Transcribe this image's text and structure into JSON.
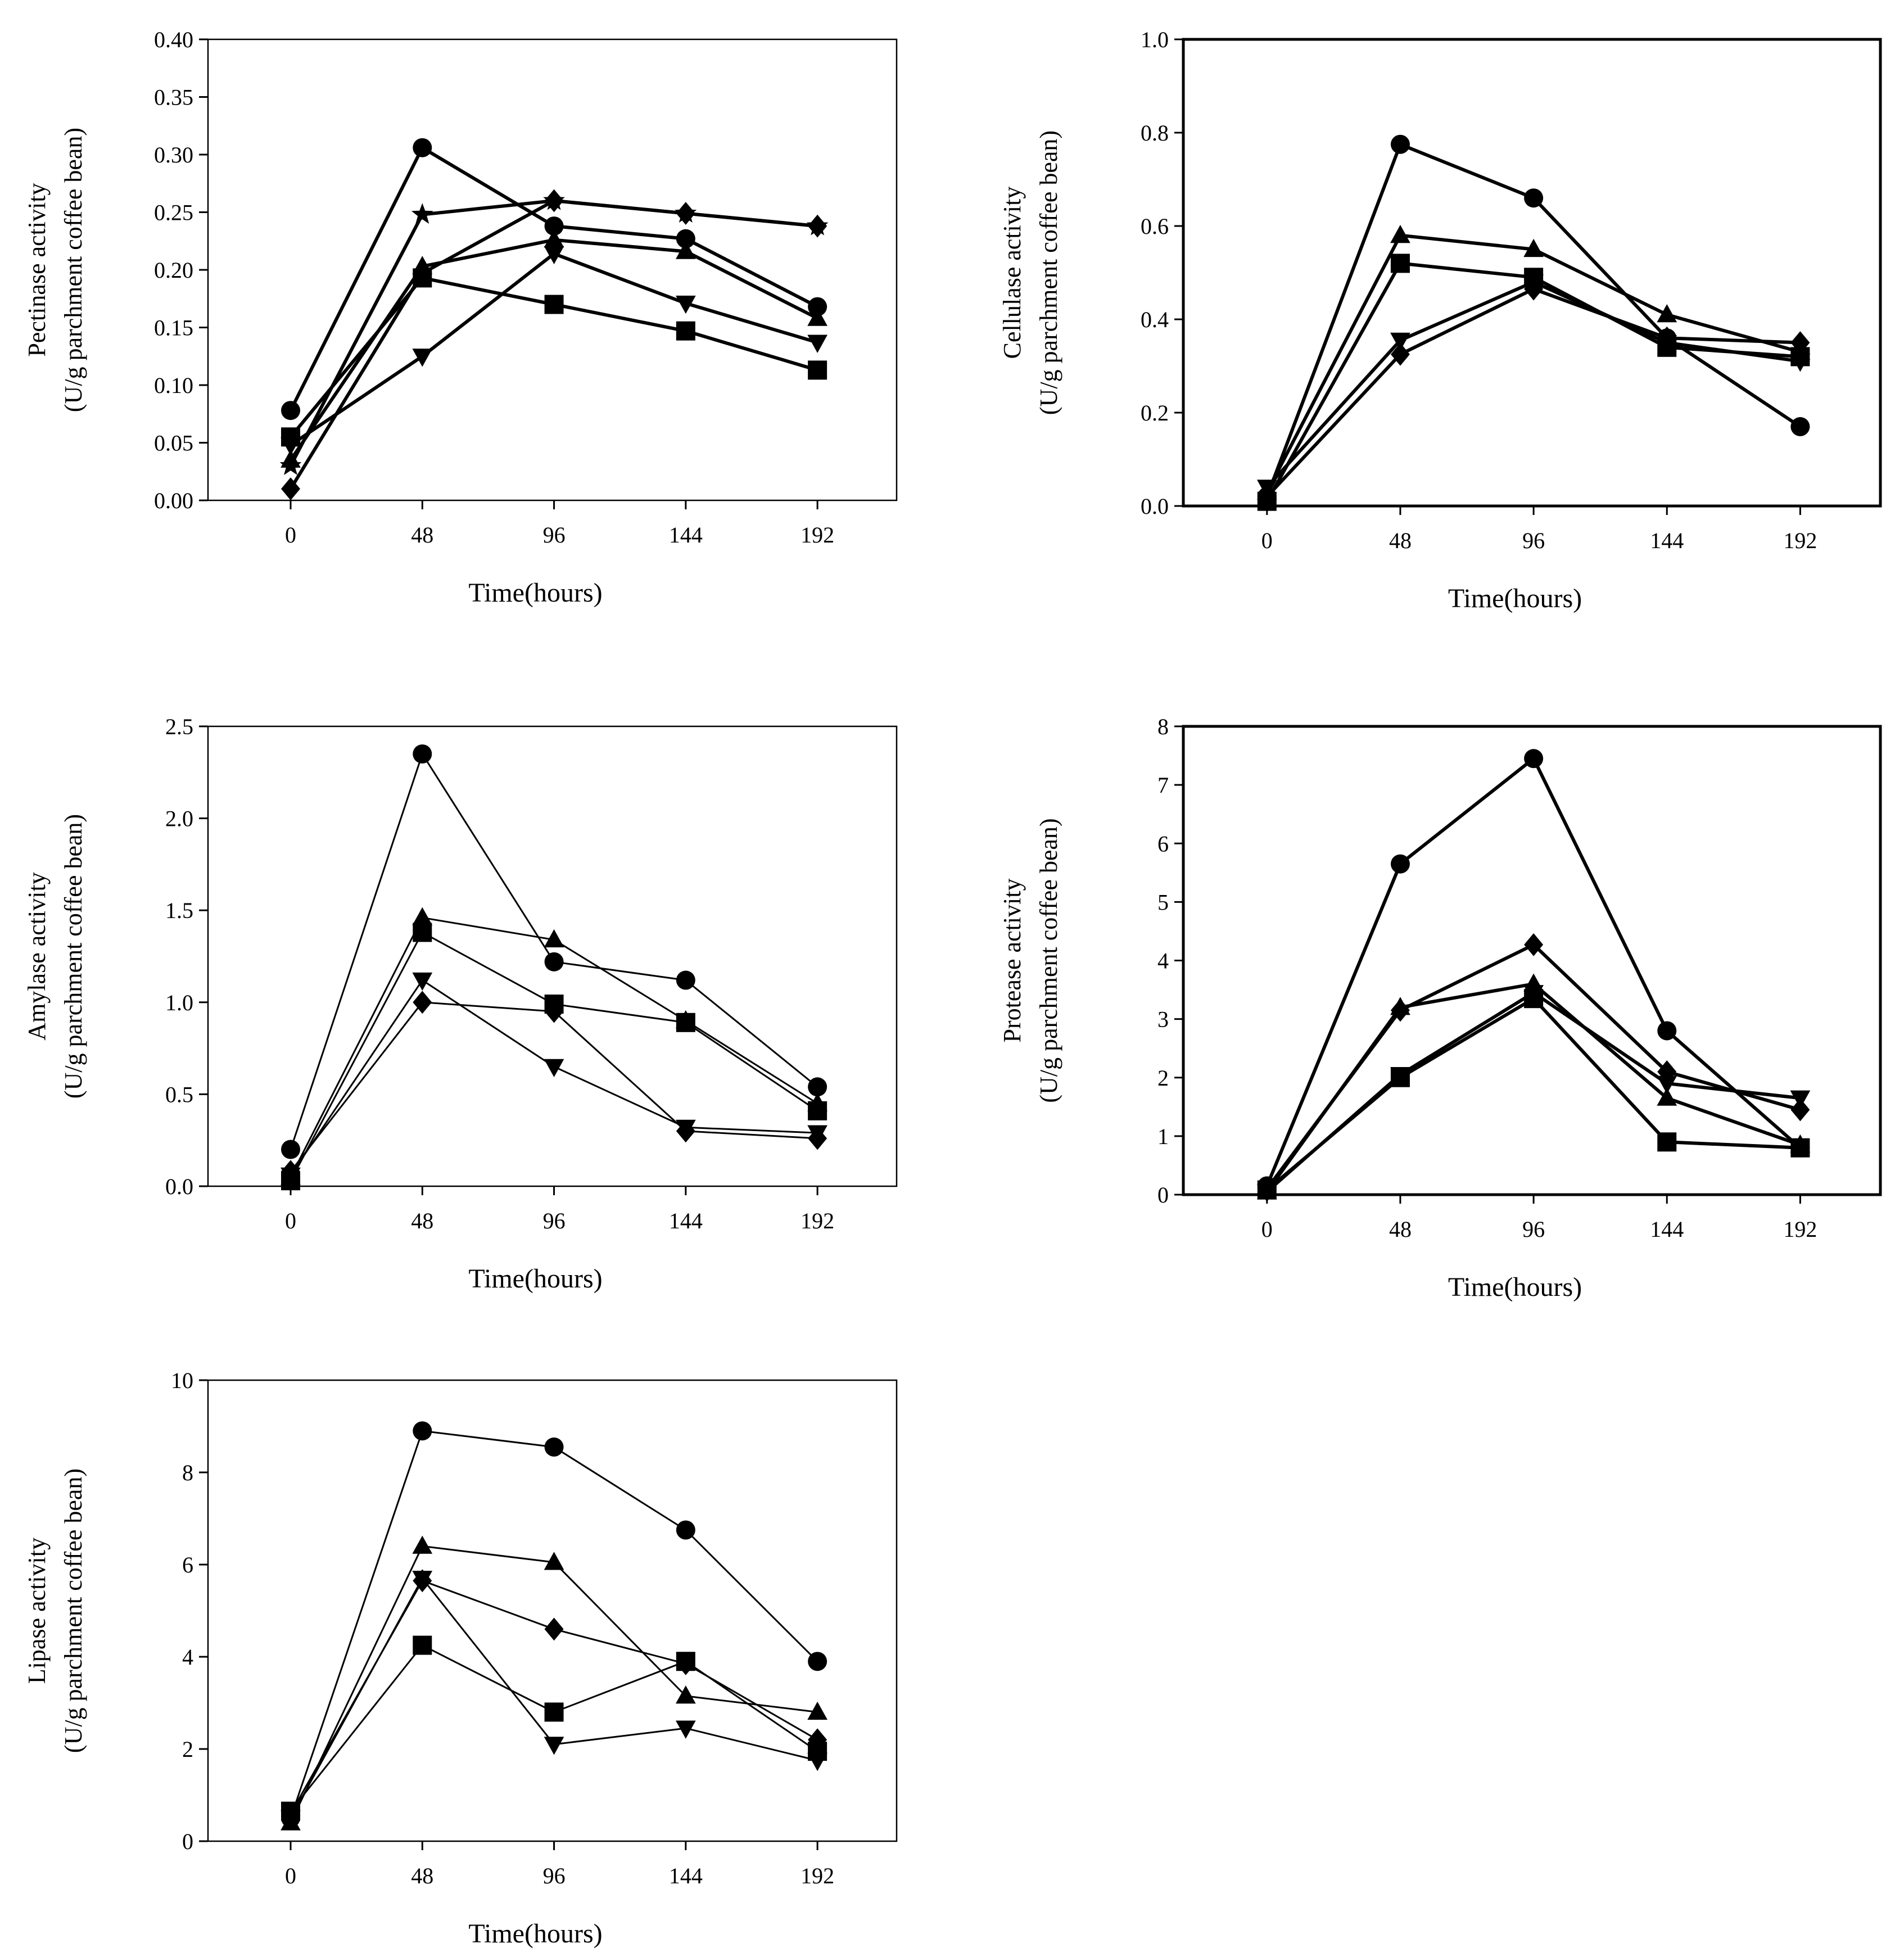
{
  "figure": {
    "charts": [
      {
        "id": "pectinase",
        "type": "line",
        "xlabel": "Time(hours)",
        "ylabel_line1": "Pectinase activity",
        "ylabel_line2": "(U/g parchment coffee bean)",
        "xticks": [
          "0",
          "48",
          "96",
          "144",
          "192"
        ],
        "yticks": [
          "0.00",
          "0.05",
          "0.10",
          "0.15",
          "0.20",
          "0.25",
          "0.30",
          "0.35",
          "0.40"
        ],
        "ylim": [
          0,
          0.4
        ],
        "series": [
          {
            "marker": "circle",
            "values": [
              0.078,
              0.306,
              0.238,
              0.227,
              0.168
            ]
          },
          {
            "marker": "triangle-up",
            "values": [
              0.035,
              0.203,
              0.226,
              0.216,
              0.158
            ]
          },
          {
            "marker": "square",
            "values": [
              0.055,
              0.193,
              0.17,
              0.147,
              0.113
            ]
          },
          {
            "marker": "triangle-down",
            "values": [
              0.048,
              0.125,
              0.214,
              0.171,
              0.137
            ]
          },
          {
            "marker": "diamond",
            "values": [
              0.01,
              0.197,
              0.26,
              0.249,
              0.238
            ]
          },
          {
            "marker": "star",
            "values": [
              0.03,
              0.248,
              0.26,
              0.249,
              0.238
            ]
          }
        ]
      },
      {
        "id": "cellulase",
        "type": "line",
        "xlabel": "Time(hours)",
        "ylabel_line1": "Cellulase activity",
        "ylabel_line2": "(U/g parchment coffee bean)",
        "xticks": [
          "0",
          "48",
          "96",
          "144",
          "192"
        ],
        "yticks": [
          "0.0",
          "0.2",
          "0.4",
          "0.6",
          "0.8",
          "1.0"
        ],
        "ylim": [
          0,
          1.0
        ],
        "series": [
          {
            "marker": "circle",
            "values": [
              0.02,
              0.775,
              0.66,
              0.36,
              0.17
            ]
          },
          {
            "marker": "triangle-up",
            "values": [
              0.03,
              0.58,
              0.55,
              0.41,
              0.33
            ]
          },
          {
            "marker": "square",
            "values": [
              0.01,
              0.52,
              0.49,
              0.34,
              0.32
            ]
          },
          {
            "marker": "triangle-down",
            "values": [
              0.04,
              0.355,
              0.48,
              0.35,
              0.31
            ]
          },
          {
            "marker": "diamond",
            "values": [
              0.02,
              0.325,
              0.465,
              0.36,
              0.35
            ]
          }
        ]
      },
      {
        "id": "amylase",
        "type": "line",
        "xlabel": "Time(hours)",
        "ylabel_line1": "Amylase activity",
        "ylabel_line2": "(U/g parchment coffee bean)",
        "xticks": [
          "0",
          "48",
          "96",
          "144",
          "192"
        ],
        "yticks": [
          "0.0",
          "0.5",
          "1.0",
          "1.5",
          "2.0",
          "2.5"
        ],
        "ylim": [
          0,
          2.5
        ],
        "series": [
          {
            "marker": "circle",
            "values": [
              0.2,
              2.35,
              1.22,
              1.12,
              0.54
            ]
          },
          {
            "marker": "triangle-up",
            "values": [
              0.05,
              1.46,
              1.34,
              0.9,
              0.45
            ]
          },
          {
            "marker": "square",
            "values": [
              0.03,
              1.38,
              0.99,
              0.89,
              0.41
            ]
          },
          {
            "marker": "triangle-down",
            "values": [
              0.06,
              1.12,
              0.65,
              0.32,
              0.29
            ]
          },
          {
            "marker": "diamond",
            "values": [
              0.08,
              1.0,
              0.95,
              0.3,
              0.26
            ]
          }
        ]
      },
      {
        "id": "protease",
        "type": "line",
        "xlabel": "Time(hours)",
        "ylabel_line1": "Protease activity",
        "ylabel_line2": "(U/g parchment coffee bean)",
        "xticks": [
          "0",
          "48",
          "96",
          "144",
          "192"
        ],
        "yticks": [
          "0",
          "1",
          "2",
          "3",
          "4",
          "5",
          "6",
          "7",
          "8"
        ],
        "ylim": [
          0,
          8
        ],
        "series": [
          {
            "marker": "circle",
            "values": [
              0.15,
              5.65,
              7.45,
              2.8,
              0.8
            ]
          },
          {
            "marker": "diamond",
            "values": [
              0.1,
              3.15,
              4.27,
              2.1,
              1.45
            ]
          },
          {
            "marker": "triangle-up",
            "values": [
              0.05,
              3.2,
              3.6,
              1.65,
              0.85
            ]
          },
          {
            "marker": "triangle-down",
            "values": [
              0.05,
              2.05,
              3.45,
              1.9,
              1.65
            ]
          },
          {
            "marker": "square",
            "values": [
              0.08,
              2.0,
              3.35,
              0.9,
              0.8
            ]
          }
        ]
      },
      {
        "id": "lipase",
        "type": "line",
        "xlabel": "Time(hours)",
        "ylabel_line1": "Lipase activity",
        "ylabel_line2": "(U/g parchment coffee bean)",
        "xticks": [
          "0",
          "48",
          "96",
          "144",
          "192"
        ],
        "yticks": [
          "0",
          "2",
          "4",
          "6",
          "8",
          "10"
        ],
        "ylim": [
          0,
          10
        ],
        "series": [
          {
            "marker": "circle",
            "values": [
              0.5,
              8.9,
              8.55,
              6.75,
              3.9
            ]
          },
          {
            "marker": "triangle-up",
            "values": [
              0.4,
              6.4,
              6.05,
              3.15,
              2.8
            ]
          },
          {
            "marker": "diamond",
            "values": [
              0.6,
              5.65,
              4.6,
              3.85,
              2.2
            ]
          },
          {
            "marker": "triangle-down",
            "values": [
              0.5,
              5.7,
              2.1,
              2.45,
              1.75
            ]
          },
          {
            "marker": "square",
            "values": [
              0.65,
              4.25,
              2.8,
              3.9,
              1.95
            ]
          }
        ]
      }
    ]
  },
  "style": {
    "line_color": "#000000",
    "background": "#ffffff"
  }
}
